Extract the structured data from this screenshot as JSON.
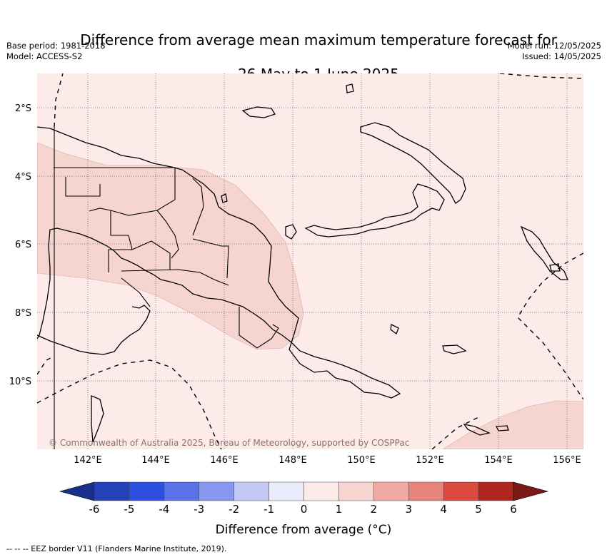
{
  "title": {
    "line1": "Difference from average mean maximum temperature forecast for",
    "line2": "26 May to 1 June 2025"
  },
  "info_left": {
    "base_period": "Base period: 1981-2018",
    "model": "Model: ACCESS-S2"
  },
  "info_right": {
    "model_run": "Model run: 12/05/2025",
    "issued": "Issued: 14/05/2025"
  },
  "map": {
    "lat_labels": [
      "2°S",
      "4°S",
      "6°S",
      "8°S",
      "10°S"
    ],
    "lon_labels": [
      "142°E",
      "144°E",
      "146°E",
      "148°E",
      "150°E",
      "152°E",
      "154°E",
      "156°E"
    ],
    "credit": "© Commonwealth of Australia 2025, Bureau of Meteorology, supported by COSPPac",
    "base_color": "#fcebe8",
    "anomaly_color": "#f6d5d1"
  },
  "colorbar": {
    "label": "Difference from average (°C)",
    "ticks": [
      "-6",
      "-5",
      "-4",
      "-3",
      "-2",
      "-1",
      "0",
      "1",
      "2",
      "3",
      "4",
      "5",
      "6"
    ],
    "colors": [
      "#1a2f8a",
      "#2443b8",
      "#2f4fdf",
      "#5a72e8",
      "#8796ee",
      "#c4caf5",
      "#e9ebfb",
      "#fcebe8",
      "#f6d5d1",
      "#f0aaa4",
      "#e6837a",
      "#dc4a3f",
      "#b0261f",
      "#7a1a16"
    ]
  },
  "footnote": "--  --  -- EEZ border V11 (Flanders Marine Institute, 2019)."
}
